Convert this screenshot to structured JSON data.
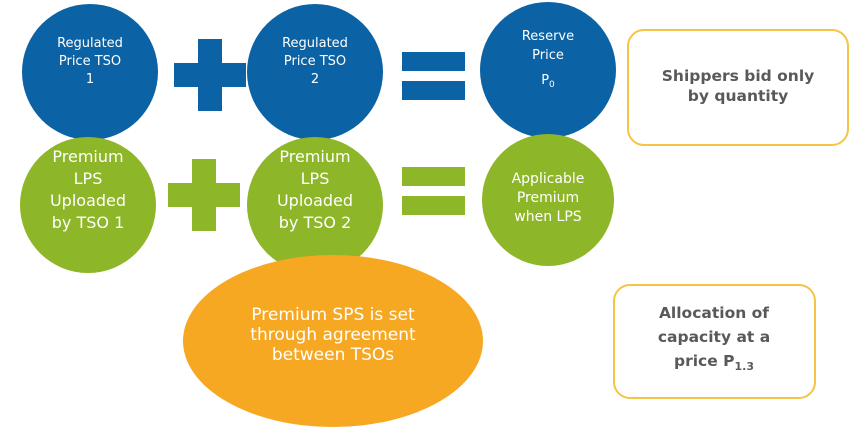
{
  "nodes": [
    {
      "lines": [
        "Regulated",
        "Price TSO",
        "1"
      ]
    },
    {
      "lines": [
        "Regulated",
        "Price TSO",
        "2"
      ]
    },
    {
      "lines": [
        "Reserve",
        "Price"
      ],
      "price": "P",
      "sub": "0"
    },
    {
      "lines": [
        "Premium",
        "LPS",
        "Uploaded",
        "by TSO 1"
      ]
    },
    {
      "lines": [
        "Premium",
        "LPS",
        "Uploaded",
        "by TSO 2"
      ]
    },
    {
      "lines": [
        "Applicable",
        "Premium",
        "when LPS"
      ]
    },
    {
      "lines": [
        "Premium SPS is set",
        "through agreement",
        "between TSOs"
      ]
    }
  ],
  "boxes": [
    {
      "lines": [
        "Shippers bid only",
        "by quantity"
      ]
    },
    {
      "lines": [
        "Allocation of",
        "capacity at a"
      ],
      "last": "price P",
      "sub": "1.3"
    }
  ]
}
